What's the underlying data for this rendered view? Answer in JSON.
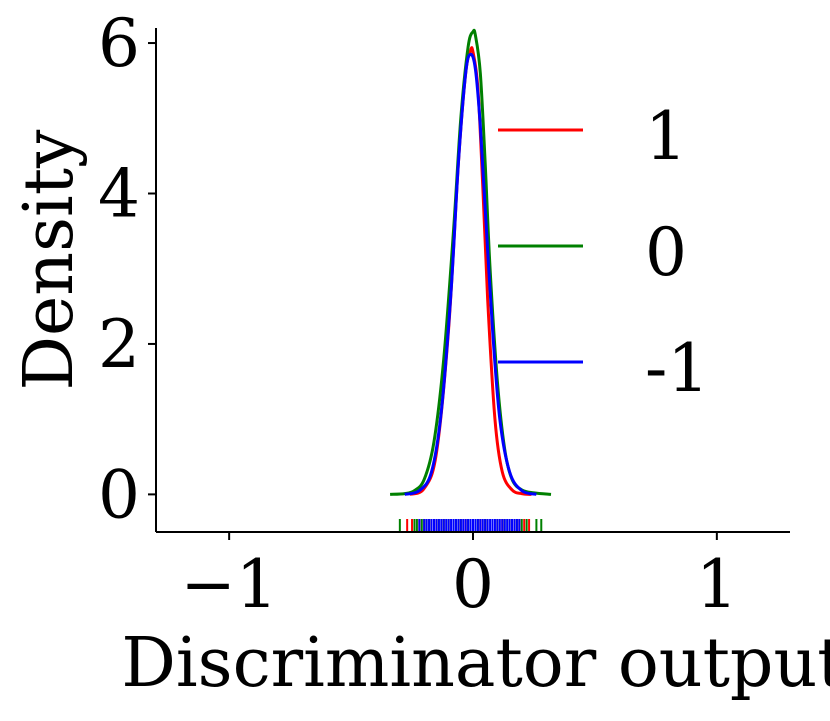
{
  "chart_data": {
    "type": "line",
    "xlabel": "Discriminator output",
    "ylabel": "Density",
    "xlim": [
      -1.3,
      1.3
    ],
    "ylim": [
      -0.5,
      6.2
    ],
    "xticks": [
      -1,
      0,
      1
    ],
    "xtick_labels": [
      "−1",
      "0",
      "1"
    ],
    "yticks": [
      0,
      2,
      4,
      6
    ],
    "ytick_labels": [
      "0",
      "2",
      "4",
      "6"
    ],
    "grid": false,
    "legend_position": "right",
    "series": [
      {
        "name": "1",
        "color": "#ff0000",
        "x": [
          -0.26,
          -0.2,
          -0.15,
          -0.1,
          -0.06,
          -0.03,
          -0.01,
          0.0,
          0.02,
          0.04,
          0.06,
          0.09,
          0.12,
          0.16,
          0.2,
          0.24
        ],
        "y": [
          0.0,
          0.08,
          0.55,
          2.2,
          4.4,
          5.6,
          5.9,
          5.88,
          5.4,
          4.1,
          2.6,
          1.0,
          0.3,
          0.06,
          0.01,
          0.0
        ],
        "rug": [
          -0.27,
          -0.25,
          -0.22,
          -0.2,
          -0.18,
          -0.15,
          -0.12,
          -0.1,
          -0.08,
          -0.05,
          -0.03,
          0.0,
          0.03,
          0.05,
          0.08,
          0.1,
          0.12,
          0.15,
          0.17,
          0.19,
          0.21,
          0.23
        ]
      },
      {
        "name": "0",
        "color": "#008000",
        "x": [
          -0.34,
          -0.28,
          -0.24,
          -0.2,
          -0.16,
          -0.12,
          -0.08,
          -0.05,
          -0.02,
          0.0,
          0.01,
          0.03,
          0.05,
          0.07,
          0.1,
          0.13,
          0.16,
          0.2,
          0.25,
          0.32
        ],
        "y": [
          0.0,
          0.01,
          0.05,
          0.2,
          0.7,
          1.8,
          3.5,
          5.0,
          5.95,
          6.15,
          6.1,
          5.6,
          4.4,
          3.0,
          1.5,
          0.6,
          0.2,
          0.06,
          0.02,
          0.0
        ],
        "rug": [
          -0.3,
          -0.24,
          -0.23,
          -0.21,
          -0.2,
          -0.18,
          -0.16,
          -0.14,
          -0.12,
          -0.1,
          -0.07,
          -0.05,
          -0.02,
          0.0,
          0.02,
          0.05,
          0.08,
          0.1,
          0.13,
          0.15,
          0.18,
          0.2,
          0.22,
          0.26,
          0.28
        ]
      },
      {
        "name": "-1",
        "color": "#0000ff",
        "x": [
          -0.28,
          -0.22,
          -0.17,
          -0.13,
          -0.09,
          -0.06,
          -0.03,
          -0.01,
          0.01,
          0.03,
          0.05,
          0.08,
          0.11,
          0.15,
          0.2,
          0.26
        ],
        "y": [
          0.0,
          0.05,
          0.3,
          1.1,
          2.7,
          4.4,
          5.6,
          5.85,
          5.65,
          4.9,
          3.8,
          2.2,
          1.0,
          0.3,
          0.05,
          0.0
        ],
        "rug": [
          -0.22,
          -0.2,
          -0.19,
          -0.18,
          -0.17,
          -0.16,
          -0.15,
          -0.14,
          -0.13,
          -0.12,
          -0.11,
          -0.1,
          -0.09,
          -0.08,
          -0.07,
          -0.06,
          -0.05,
          -0.04,
          -0.03,
          -0.02,
          -0.01,
          0.0,
          0.01,
          0.02,
          0.03,
          0.04,
          0.05,
          0.06,
          0.07,
          0.08,
          0.09,
          0.1,
          0.11,
          0.12,
          0.13,
          0.14,
          0.15,
          0.16,
          0.17,
          0.18,
          0.19
        ]
      }
    ]
  }
}
